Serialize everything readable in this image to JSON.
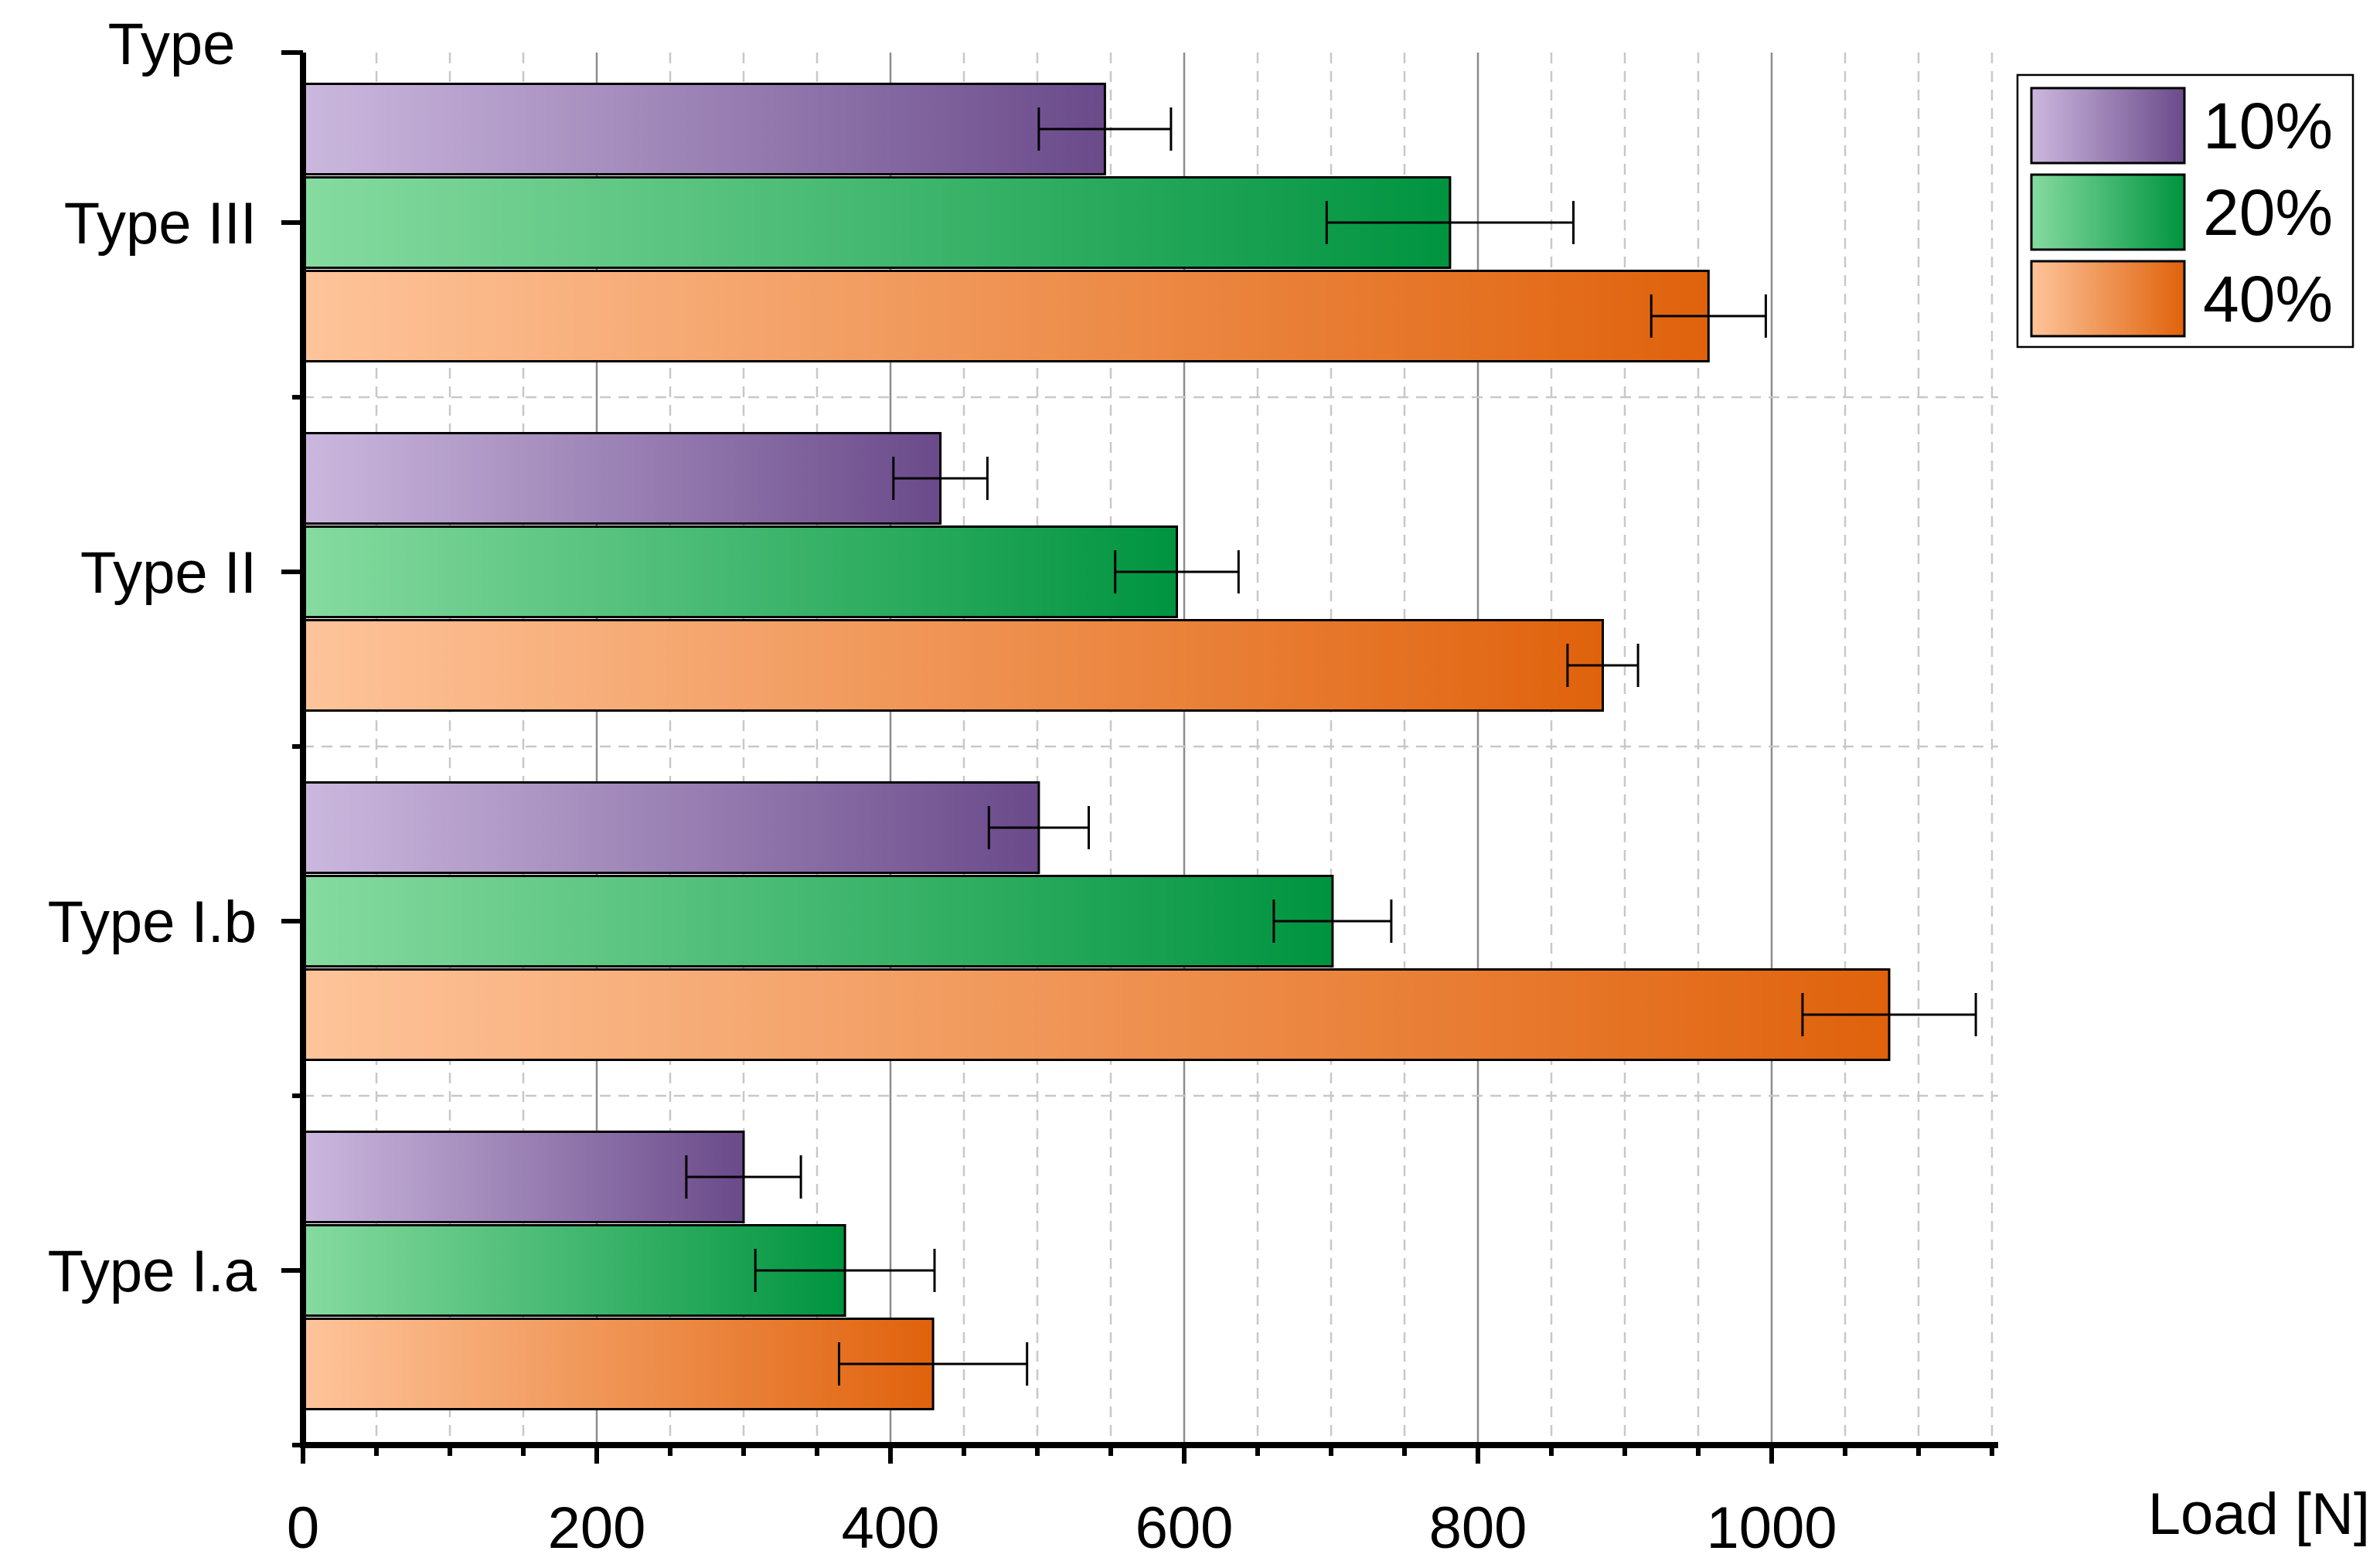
{
  "chart_data": {
    "type": "bar",
    "orientation": "horizontal",
    "title": "",
    "ylabel": "Type",
    "xlabel": "Load [N]",
    "xlim": [
      0,
      1150
    ],
    "x_ticks": [
      0,
      200,
      400,
      600,
      800,
      1000
    ],
    "x_tick_labels": [
      "0",
      "200",
      "400",
      "600",
      "800",
      "1000"
    ],
    "categories": [
      "Type I.a",
      "Type I.b",
      "Type II",
      "Type III"
    ],
    "series": [
      {
        "name": "10%",
        "values": [
          300,
          501,
          434,
          546
        ],
        "errors": [
          39,
          34,
          32,
          45
        ],
        "color_dark": "#6a4a8a",
        "color_light": "#cbb8de"
      },
      {
        "name": "20%",
        "values": [
          369,
          701,
          595,
          781
        ],
        "errors": [
          61,
          40,
          42,
          84
        ],
        "color_dark": "#00943f",
        "color_light": "#86dba0"
      },
      {
        "name": "40%",
        "values": [
          429,
          1080,
          885,
          957
        ],
        "errors": [
          64,
          59,
          24,
          39
        ],
        "color_dark": "#e0620c",
        "color_light": "#fec49a"
      }
    ],
    "grid": true,
    "legend_position": "top-right"
  }
}
